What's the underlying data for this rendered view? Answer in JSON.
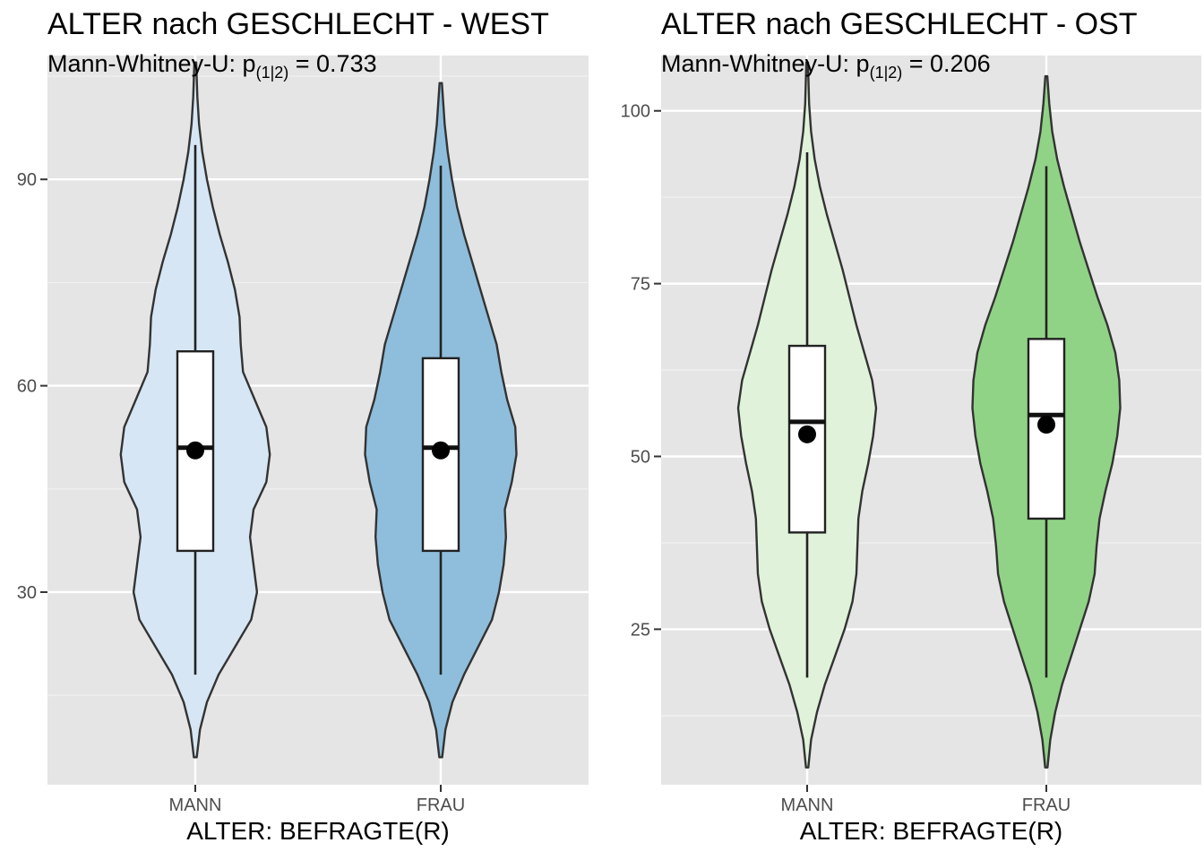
{
  "chart_data": [
    {
      "type": "violin",
      "title": "ALTER nach GESCHLECHT - WEST",
      "subtitle": {
        "prefix": "Mann-Whitney-U:  p",
        "subscript": "(1|2)",
        "suffix": " = 0.733"
      },
      "xlabel": "ALTER: BEFRAGTE(R)",
      "ylabel": "",
      "ylim": [
        2,
        108
      ],
      "yticks": [
        30,
        60,
        90
      ],
      "ytick_labels": [
        "30",
        "60",
        "90"
      ],
      "categories": [
        "MANN",
        "FRAU"
      ],
      "series": [
        {
          "name": "MANN",
          "fill": "#d6e6f4",
          "min": 18,
          "q1": 36,
          "median": 51,
          "q3": 65,
          "max": 95,
          "mean": 50.6,
          "density_min": 6,
          "density_max": 107,
          "violin_profile": [
            [
              6,
              0.6
            ],
            [
              10,
              2
            ],
            [
              14,
              5
            ],
            [
              18,
              10
            ],
            [
              22,
              17
            ],
            [
              26,
              24
            ],
            [
              30,
              26.5
            ],
            [
              34,
              25
            ],
            [
              38,
              23.5
            ],
            [
              42,
              25
            ],
            [
              46,
              30.5
            ],
            [
              50,
              32
            ],
            [
              54,
              30.5
            ],
            [
              58,
              25.5
            ],
            [
              62,
              20.5
            ],
            [
              66,
              19.5
            ],
            [
              70,
              19
            ],
            [
              74,
              17
            ],
            [
              78,
              14
            ],
            [
              82,
              10.5
            ],
            [
              86,
              7.5
            ],
            [
              90,
              5
            ],
            [
              94,
              3
            ],
            [
              98,
              1.6
            ],
            [
              102,
              0.9
            ],
            [
              107,
              0.4
            ]
          ]
        },
        {
          "name": "FRAU",
          "fill": "#8fbedc",
          "min": 18,
          "q1": 36,
          "median": 51,
          "q3": 64,
          "max": 92,
          "mean": 50.6,
          "density_min": 6,
          "density_max": 104,
          "violin_profile": [
            [
              6,
              0.6
            ],
            [
              10,
              2
            ],
            [
              14,
              5
            ],
            [
              18,
              10
            ],
            [
              22,
              16
            ],
            [
              26,
              22
            ],
            [
              30,
              25
            ],
            [
              34,
              27
            ],
            [
              38,
              28
            ],
            [
              42,
              27.5
            ],
            [
              46,
              30.5
            ],
            [
              50,
              32.5
            ],
            [
              54,
              32
            ],
            [
              58,
              28.5
            ],
            [
              62,
              26
            ],
            [
              66,
              24
            ],
            [
              70,
              20.5
            ],
            [
              74,
              17
            ],
            [
              78,
              13.5
            ],
            [
              82,
              10
            ],
            [
              86,
              7
            ],
            [
              90,
              4.8
            ],
            [
              94,
              3
            ],
            [
              98,
              1.7
            ],
            [
              104,
              0.5
            ]
          ]
        }
      ]
    },
    {
      "type": "violin",
      "title": "ALTER nach GESCHLECHT - OST",
      "subtitle": {
        "prefix": "Mann-Whitney-U:  p",
        "subscript": "(1|2)",
        "suffix": " = 0.206"
      },
      "xlabel": "ALTER: BEFRAGTE(R)",
      "ylabel": "",
      "ylim": [
        2.5,
        108
      ],
      "yticks": [
        25,
        50,
        75,
        100
      ],
      "ytick_labels": [
        "25",
        "50",
        "75",
        "100"
      ],
      "categories": [
        "MANN",
        "FRAU"
      ],
      "series": [
        {
          "name": "MANN",
          "fill": "#e0f3da",
          "min": 18,
          "q1": 39,
          "median": 55,
          "q3": 66,
          "max": 94,
          "mean": 53.2,
          "density_min": 5,
          "density_max": 107,
          "violin_profile": [
            [
              5,
              0.6
            ],
            [
              9,
              2
            ],
            [
              13,
              5
            ],
            [
              17,
              9
            ],
            [
              21,
              14
            ],
            [
              25,
              19
            ],
            [
              29,
              23
            ],
            [
              33,
              25
            ],
            [
              37,
              25.5
            ],
            [
              41,
              26
            ],
            [
              45,
              28
            ],
            [
              49,
              31
            ],
            [
              53,
              33.5
            ],
            [
              57,
              35
            ],
            [
              61,
              33
            ],
            [
              65,
              29
            ],
            [
              69,
              25
            ],
            [
              73,
              21.5
            ],
            [
              77,
              18
            ],
            [
              81,
              14
            ],
            [
              85,
              10
            ],
            [
              89,
              6.5
            ],
            [
              93,
              3.8
            ],
            [
              97,
              2
            ],
            [
              101,
              1
            ],
            [
              107,
              0.4
            ]
          ]
        },
        {
          "name": "FRAU",
          "fill": "#91d386",
          "min": 18,
          "q1": 41,
          "median": 56,
          "q3": 67,
          "max": 92,
          "mean": 54.6,
          "density_min": 5,
          "density_max": 105,
          "violin_profile": [
            [
              5,
              0.6
            ],
            [
              9,
              2
            ],
            [
              13,
              4.5
            ],
            [
              17,
              8
            ],
            [
              21,
              12.5
            ],
            [
              25,
              17
            ],
            [
              29,
              21.5
            ],
            [
              33,
              24.5
            ],
            [
              37,
              25.5
            ],
            [
              41,
              27
            ],
            [
              45,
              30
            ],
            [
              49,
              33.5
            ],
            [
              53,
              36
            ],
            [
              57,
              37.5
            ],
            [
              61,
              37
            ],
            [
              65,
              35
            ],
            [
              69,
              31
            ],
            [
              73,
              26
            ],
            [
              77,
              21.5
            ],
            [
              81,
              17
            ],
            [
              85,
              13
            ],
            [
              89,
              9
            ],
            [
              93,
              5.5
            ],
            [
              97,
              3
            ],
            [
              101,
              1.5
            ],
            [
              105,
              0.5
            ]
          ]
        }
      ]
    }
  ]
}
